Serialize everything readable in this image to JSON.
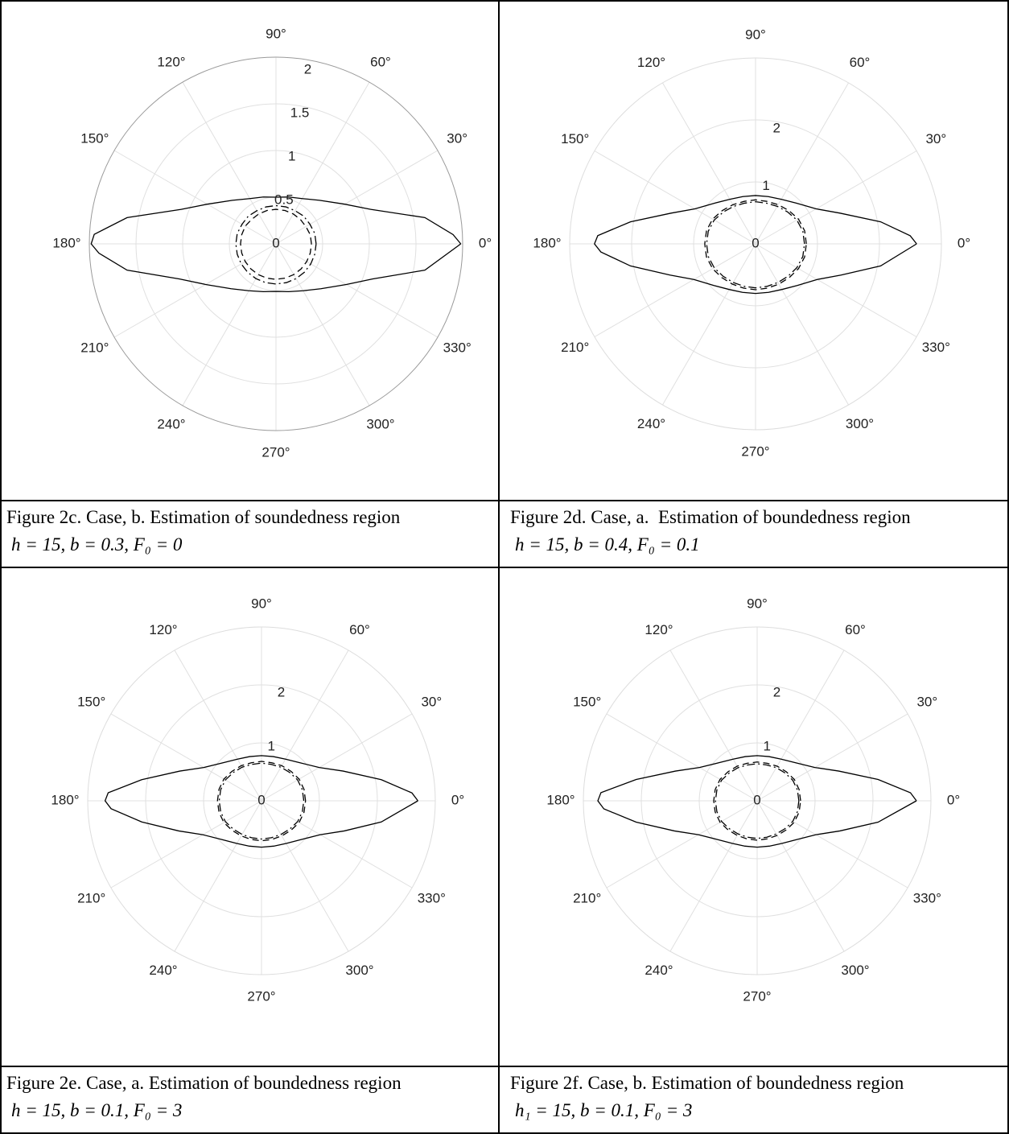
{
  "chart_data": [
    {
      "type": "polar",
      "rlim": [
        0,
        2
      ],
      "rticks": [
        0,
        0.5,
        1,
        1.5,
        2
      ],
      "axis_color": "#9a9a9a",
      "thetaticks": [
        {
          "value": 0,
          "label": "0°"
        },
        {
          "value": 30,
          "label": "30°"
        },
        {
          "value": 60,
          "label": "60°"
        },
        {
          "value": 90,
          "label": "90°"
        },
        {
          "value": 120,
          "label": "120°"
        },
        {
          "value": 150,
          "label": "150°"
        },
        {
          "value": 180,
          "label": "180°"
        },
        {
          "value": 210,
          "label": "210°"
        },
        {
          "value": 240,
          "label": "240°"
        },
        {
          "value": 270,
          "label": "270°"
        },
        {
          "value": 300,
          "label": "300°"
        },
        {
          "value": 330,
          "label": "330°"
        }
      ],
      "series": [
        {
          "style": "solid",
          "color": "#000000",
          "theta": [
            0,
            3,
            10,
            20,
            30,
            45,
            60,
            75,
            90,
            105,
            120,
            135,
            150,
            160,
            170,
            177,
            180,
            183,
            190,
            200,
            210,
            225,
            240,
            255,
            270,
            285,
            300,
            315,
            330,
            340,
            350,
            360
          ],
          "r": [
            1.98,
            1.9,
            1.62,
            1.08,
            0.85,
            0.66,
            0.56,
            0.52,
            0.5,
            0.52,
            0.56,
            0.66,
            0.85,
            1.08,
            1.62,
            1.95,
            1.98,
            1.9,
            1.62,
            1.1,
            0.87,
            0.68,
            0.58,
            0.53,
            0.51,
            0.53,
            0.58,
            0.68,
            0.87,
            1.1,
            1.62,
            1.98
          ]
        },
        {
          "style": "dashed",
          "color": "#000000",
          "theta": [
            0,
            15,
            30,
            45,
            60,
            75,
            90,
            105,
            120,
            135,
            150,
            165,
            180,
            195,
            210,
            225,
            240,
            255,
            270,
            285,
            300,
            315,
            330,
            345,
            360
          ],
          "r": [
            0.38,
            0.38,
            0.37,
            0.37,
            0.37,
            0.37,
            0.37,
            0.37,
            0.37,
            0.37,
            0.38,
            0.38,
            0.38,
            0.38,
            0.38,
            0.38,
            0.38,
            0.38,
            0.38,
            0.38,
            0.38,
            0.38,
            0.38,
            0.38,
            0.38
          ]
        },
        {
          "style": "dashdot",
          "color": "#000000",
          "theta": [
            0,
            15,
            30,
            45,
            60,
            75,
            90,
            105,
            120,
            135,
            150,
            165,
            180,
            195,
            210,
            225,
            240,
            255,
            270,
            285,
            300,
            315,
            330,
            345,
            360
          ],
          "r": [
            0.43,
            0.43,
            0.42,
            0.42,
            0.41,
            0.41,
            0.41,
            0.41,
            0.41,
            0.42,
            0.42,
            0.43,
            0.43,
            0.43,
            0.43,
            0.43,
            0.43,
            0.43,
            0.43,
            0.43,
            0.43,
            0.43,
            0.43,
            0.43,
            0.43
          ]
        }
      ]
    },
    {
      "type": "polar",
      "rlim": [
        0,
        3
      ],
      "rticks": [
        0,
        1,
        2
      ],
      "axis_color": "#dddddd",
      "thetaticks": [
        {
          "value": 0,
          "label": "0°"
        },
        {
          "value": 30,
          "label": "30°"
        },
        {
          "value": 60,
          "label": "60°"
        },
        {
          "value": 90,
          "label": "90°"
        },
        {
          "value": 120,
          "label": "120°"
        },
        {
          "value": 150,
          "label": "150°"
        },
        {
          "value": 180,
          "label": "180°"
        },
        {
          "value": 210,
          "label": "210°"
        },
        {
          "value": 240,
          "label": "240°"
        },
        {
          "value": 270,
          "label": "270°"
        },
        {
          "value": 300,
          "label": "300°"
        },
        {
          "value": 330,
          "label": "330°"
        }
      ],
      "series": [
        {
          "style": "solid",
          "color": "#000000",
          "theta": [
            0,
            3,
            10,
            20,
            30,
            45,
            60,
            75,
            90,
            105,
            120,
            135,
            150,
            160,
            170,
            177,
            180,
            183,
            190,
            200,
            210,
            225,
            240,
            255,
            270,
            285,
            300,
            315,
            330,
            340,
            350,
            360
          ],
          "r": [
            2.6,
            2.5,
            2.05,
            1.45,
            1.13,
            0.93,
            0.83,
            0.79,
            0.78,
            0.79,
            0.83,
            0.93,
            1.13,
            1.45,
            2.05,
            2.55,
            2.6,
            2.5,
            2.05,
            1.47,
            1.15,
            0.95,
            0.85,
            0.81,
            0.8,
            0.81,
            0.85,
            0.95,
            1.15,
            1.47,
            2.05,
            2.6
          ]
        },
        {
          "style": "dashed",
          "color": "#000000",
          "theta": [
            0,
            15,
            30,
            45,
            60,
            75,
            90,
            105,
            120,
            135,
            150,
            165,
            180,
            195,
            210,
            225,
            240,
            255,
            270,
            285,
            300,
            315,
            330,
            345,
            360
          ],
          "r": [
            0.82,
            0.82,
            0.8,
            0.76,
            0.73,
            0.71,
            0.71,
            0.71,
            0.73,
            0.76,
            0.8,
            0.82,
            0.82,
            0.82,
            0.8,
            0.77,
            0.75,
            0.74,
            0.74,
            0.74,
            0.75,
            0.77,
            0.8,
            0.82,
            0.82
          ]
        },
        {
          "style": "dashdot",
          "color": "#000000",
          "theta": [
            0,
            15,
            30,
            45,
            60,
            75,
            90,
            105,
            120,
            135,
            150,
            165,
            180,
            195,
            210,
            225,
            240,
            255,
            270,
            285,
            300,
            315,
            330,
            345,
            360
          ],
          "r": [
            0.79,
            0.79,
            0.77,
            0.73,
            0.7,
            0.68,
            0.68,
            0.68,
            0.7,
            0.73,
            0.77,
            0.79,
            0.79,
            0.79,
            0.77,
            0.74,
            0.72,
            0.71,
            0.71,
            0.71,
            0.72,
            0.74,
            0.77,
            0.79,
            0.79
          ]
        }
      ]
    },
    {
      "type": "polar",
      "rlim": [
        0,
        3
      ],
      "rticks": [
        0,
        1,
        2
      ],
      "axis_color": "#dddddd",
      "thetaticks": [
        {
          "value": 0,
          "label": "0°"
        },
        {
          "value": 30,
          "label": "30°"
        },
        {
          "value": 60,
          "label": "60°"
        },
        {
          "value": 90,
          "label": "90°"
        },
        {
          "value": 120,
          "label": "120°"
        },
        {
          "value": 150,
          "label": "150°"
        },
        {
          "value": 180,
          "label": "180°"
        },
        {
          "value": 210,
          "label": "210°"
        },
        {
          "value": 240,
          "label": "240°"
        },
        {
          "value": 270,
          "label": "270°"
        },
        {
          "value": 300,
          "label": "300°"
        },
        {
          "value": 330,
          "label": "330°"
        }
      ],
      "series": [
        {
          "style": "solid",
          "color": "#000000",
          "theta": [
            0,
            3,
            10,
            20,
            30,
            45,
            60,
            75,
            90,
            105,
            120,
            135,
            150,
            160,
            170,
            177,
            180,
            183,
            190,
            200,
            210,
            225,
            240,
            255,
            270,
            285,
            300,
            315,
            330,
            340,
            350,
            360
          ],
          "r": [
            2.7,
            2.6,
            2.1,
            1.5,
            1.15,
            0.93,
            0.83,
            0.79,
            0.78,
            0.79,
            0.83,
            0.93,
            1.15,
            1.5,
            2.1,
            2.65,
            2.7,
            2.6,
            2.1,
            1.52,
            1.17,
            0.95,
            0.85,
            0.81,
            0.8,
            0.81,
            0.85,
            0.95,
            1.17,
            1.52,
            2.1,
            2.7
          ]
        },
        {
          "style": "dashed",
          "color": "#000000",
          "theta": [
            0,
            15,
            30,
            45,
            60,
            75,
            90,
            105,
            120,
            135,
            150,
            165,
            180,
            195,
            210,
            225,
            240,
            255,
            270,
            285,
            300,
            315,
            330,
            345,
            360
          ],
          "r": [
            0.76,
            0.76,
            0.75,
            0.72,
            0.7,
            0.68,
            0.68,
            0.68,
            0.7,
            0.72,
            0.75,
            0.76,
            0.76,
            0.76,
            0.75,
            0.72,
            0.7,
            0.69,
            0.69,
            0.69,
            0.7,
            0.72,
            0.75,
            0.76,
            0.76
          ]
        },
        {
          "style": "dashdot",
          "color": "#000000",
          "theta": [
            0,
            15,
            30,
            45,
            60,
            75,
            90,
            105,
            120,
            135,
            150,
            165,
            180,
            195,
            210,
            225,
            240,
            255,
            270,
            285,
            300,
            315,
            330,
            345,
            360
          ],
          "r": [
            0.73,
            0.73,
            0.72,
            0.69,
            0.67,
            0.65,
            0.65,
            0.65,
            0.67,
            0.69,
            0.72,
            0.73,
            0.73,
            0.73,
            0.72,
            0.69,
            0.67,
            0.66,
            0.66,
            0.66,
            0.67,
            0.69,
            0.72,
            0.73,
            0.73
          ]
        }
      ]
    },
    {
      "type": "polar",
      "rlim": [
        0,
        3
      ],
      "rticks": [
        0,
        1,
        2
      ],
      "axis_color": "#dddddd",
      "thetaticks": [
        {
          "value": 0,
          "label": "0°"
        },
        {
          "value": 30,
          "label": "30°"
        },
        {
          "value": 60,
          "label": "60°"
        },
        {
          "value": 90,
          "label": "90°"
        },
        {
          "value": 120,
          "label": "120°"
        },
        {
          "value": 150,
          "label": "150°"
        },
        {
          "value": 180,
          "label": "180°"
        },
        {
          "value": 210,
          "label": "210°"
        },
        {
          "value": 240,
          "label": "240°"
        },
        {
          "value": 270,
          "label": "270°"
        },
        {
          "value": 300,
          "label": "300°"
        },
        {
          "value": 330,
          "label": "330°"
        }
      ],
      "series": [
        {
          "style": "solid",
          "color": "#000000",
          "theta": [
            0,
            3,
            10,
            20,
            30,
            45,
            60,
            75,
            90,
            105,
            120,
            135,
            150,
            160,
            170,
            177,
            180,
            183,
            190,
            200,
            210,
            225,
            240,
            255,
            270,
            285,
            300,
            315,
            330,
            340,
            350,
            360
          ],
          "r": [
            2.75,
            2.65,
            2.12,
            1.5,
            1.15,
            0.93,
            0.83,
            0.79,
            0.78,
            0.79,
            0.83,
            0.93,
            1.15,
            1.5,
            2.12,
            2.7,
            2.75,
            2.65,
            2.12,
            1.52,
            1.17,
            0.95,
            0.85,
            0.81,
            0.8,
            0.81,
            0.85,
            0.95,
            1.17,
            1.52,
            2.12,
            2.75
          ]
        },
        {
          "style": "dashed",
          "color": "#000000",
          "theta": [
            0,
            15,
            30,
            45,
            60,
            75,
            90,
            105,
            120,
            135,
            150,
            165,
            180,
            195,
            210,
            225,
            240,
            255,
            270,
            285,
            300,
            315,
            330,
            345,
            360
          ],
          "r": [
            0.75,
            0.75,
            0.74,
            0.71,
            0.69,
            0.67,
            0.67,
            0.67,
            0.69,
            0.71,
            0.74,
            0.75,
            0.75,
            0.75,
            0.74,
            0.71,
            0.69,
            0.68,
            0.68,
            0.68,
            0.69,
            0.71,
            0.74,
            0.75,
            0.75
          ]
        },
        {
          "style": "dashdot",
          "color": "#000000",
          "theta": [
            0,
            15,
            30,
            45,
            60,
            75,
            90,
            105,
            120,
            135,
            150,
            165,
            180,
            195,
            210,
            225,
            240,
            255,
            270,
            285,
            300,
            315,
            330,
            345,
            360
          ],
          "r": [
            0.72,
            0.72,
            0.71,
            0.68,
            0.66,
            0.64,
            0.64,
            0.64,
            0.66,
            0.68,
            0.71,
            0.72,
            0.72,
            0.72,
            0.71,
            0.68,
            0.66,
            0.65,
            0.65,
            0.65,
            0.66,
            0.68,
            0.71,
            0.72,
            0.72
          ]
        }
      ]
    }
  ],
  "captions": [
    {
      "title": "Figure 2c. Case, b. Estimation of soundedness region",
      "params": "h = 15, b = 0.3, F₀ = 0"
    },
    {
      "title": "Figure 2d. Case, a.  Estimation of boundedness region",
      "params": "h = 15, b = 0.4, F₀ = 0.1"
    },
    {
      "title": "Figure 2e. Case, a. Estimation of boundedness region",
      "params": "h = 15, b = 0.1, F₀ = 3"
    },
    {
      "title": "Figure 2f. Case, b. Estimation of boundedness region",
      "params": "h₁ = 15, b = 0.1, F₀ = 3"
    }
  ]
}
